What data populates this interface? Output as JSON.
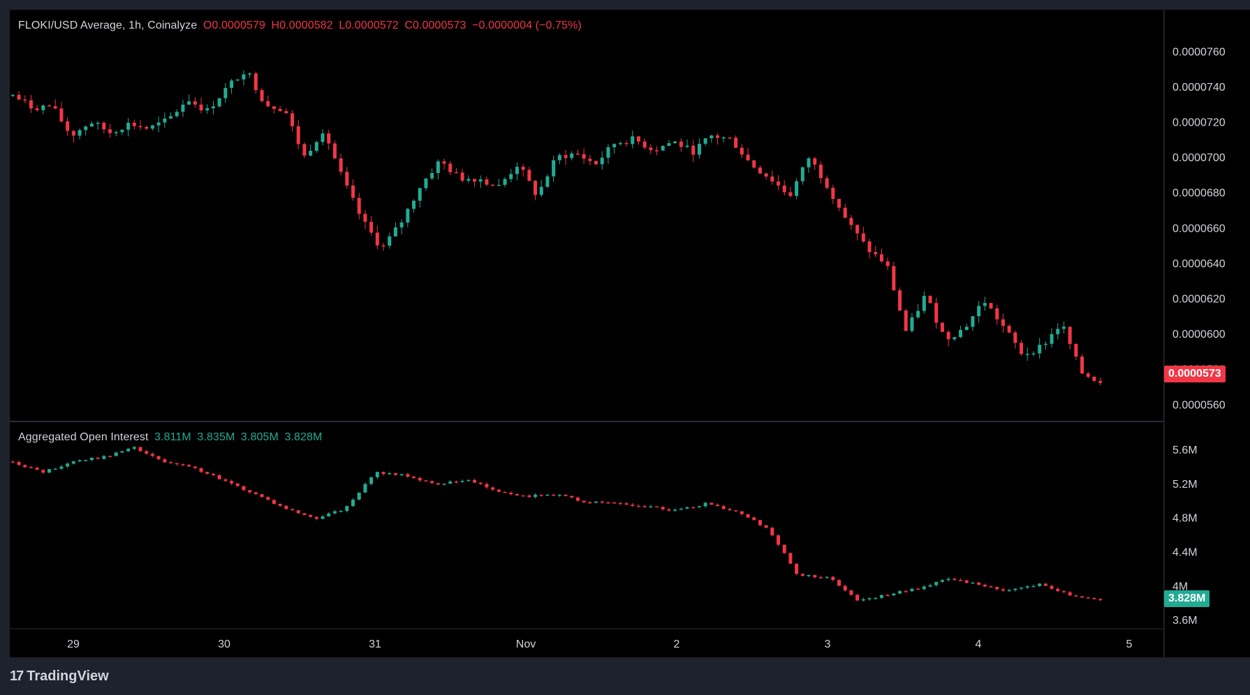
{
  "header": {
    "symbol": "FLOKI/USD Average, 1h, Coinalyze",
    "open": "O0.0000579",
    "high": "H0.0000582",
    "low": "L0.0000572",
    "close": "C0.0000573",
    "change": "−0.0000004 (−0.75%)"
  },
  "oi_legend": {
    "title": "Aggregated Open Interest",
    "v1": "3.811M",
    "v2": "3.835M",
    "v3": "3.805M",
    "v4": "3.828M"
  },
  "brand": {
    "name": "TradingView",
    "logo_text": "17"
  },
  "colors": {
    "up": "#22ab94",
    "down": "#f23645",
    "badge_price": "#f23645",
    "badge_oi": "#22ab94"
  },
  "chart_data": [
    {
      "type": "candlestick",
      "title": "FLOKI/USD Average, 1h, Coinalyze",
      "ylim": [
        5.55e-05,
        7.7e-05
      ],
      "y_ticks": [
        "0.0000760",
        "0.0000740",
        "0.0000720",
        "0.0000700",
        "0.0000680",
        "0.0000660",
        "0.0000640",
        "0.0000620",
        "0.0000600",
        "0.0000580",
        "0.0000560"
      ],
      "y_tick_values": [
        7.6e-05,
        7.4e-05,
        7.2e-05,
        7e-05,
        6.8e-05,
        6.6e-05,
        6.4e-05,
        6.2e-05,
        6e-05,
        5.8e-05,
        5.6e-05
      ],
      "x_ticks": [
        "29",
        "30",
        "31",
        "Nov",
        "2",
        "3",
        "4",
        "5"
      ],
      "last_value_label": "0.0000573",
      "close_path": [
        73.5,
        72.8,
        72.9,
        71.2,
        72.0,
        71.4,
        71.9,
        71.6,
        72.1,
        73.3,
        72.6,
        73.9,
        75.0,
        73.0,
        72.7,
        70.0,
        71.6,
        68.7,
        66.4,
        64.8,
        66.3,
        68.4,
        69.8,
        68.8,
        68.8,
        68.3,
        69.6,
        67.8,
        70.0,
        70.2,
        69.6,
        70.8,
        71.0,
        70.4,
        70.9,
        70.3,
        71.2,
        71.0,
        69.6,
        68.8,
        67.8,
        70.0,
        68.3,
        66.3,
        64.8,
        63.9,
        60.1,
        62.2,
        59.7,
        60.3,
        61.9,
        60.4,
        58.8,
        59.3,
        60.6,
        57.8,
        57.3
      ]
    },
    {
      "type": "candlestick",
      "title": "Aggregated Open Interest",
      "ylim": [
        3.52,
        5.78
      ],
      "y_ticks": [
        "5.6M",
        "5.2M",
        "4.8M",
        "4.4M",
        "4M",
        "3.6M"
      ],
      "y_tick_values": [
        5.6,
        5.2,
        4.8,
        4.4,
        4.0,
        3.6
      ],
      "last_value_label": "3.828M",
      "close_path": [
        5.45,
        5.33,
        5.46,
        5.51,
        5.62,
        5.45,
        5.38,
        5.23,
        5.08,
        4.91,
        4.79,
        4.9,
        5.33,
        5.3,
        5.18,
        5.25,
        5.12,
        5.05,
        5.07,
        4.98,
        4.97,
        4.93,
        4.88,
        4.97,
        4.86,
        4.67,
        4.12,
        4.1,
        3.82,
        3.9,
        3.97,
        4.08,
        4.01,
        3.94,
        4.02,
        3.89,
        3.83
      ]
    }
  ]
}
